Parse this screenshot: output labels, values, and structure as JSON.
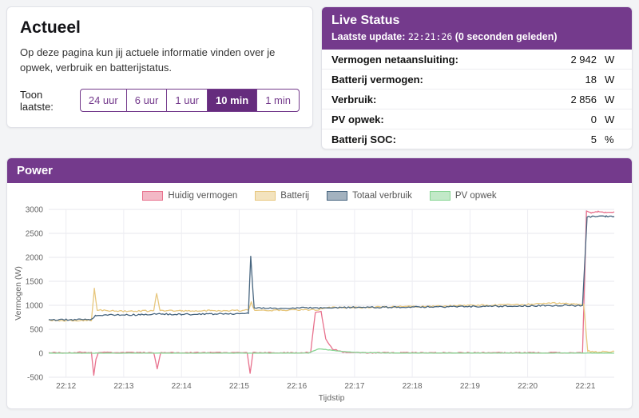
{
  "colors": {
    "accent": "#743a8c",
    "accent_dark": "#652c7d"
  },
  "actueel": {
    "title": "Actueel",
    "description": "Op deze pagina kun jij actuele informatie vinden over je opwek, verbruik en batterijstatus.",
    "range_label": "Toon laatste:",
    "ranges": [
      {
        "label": "24 uur",
        "active": false
      },
      {
        "label": "6 uur",
        "active": false
      },
      {
        "label": "1 uur",
        "active": false
      },
      {
        "label": "10 min",
        "active": true
      },
      {
        "label": "1 min",
        "active": false
      }
    ]
  },
  "live_status": {
    "title": "Live Status",
    "update_label": "Laatste update:",
    "update_time": "22:21:26",
    "update_ago": "(0 seconden geleden)",
    "rows": [
      {
        "label": "Vermogen netaansluiting:",
        "value": "2 942",
        "unit": "W"
      },
      {
        "label": "Batterij vermogen:",
        "value": "18",
        "unit": "W"
      },
      {
        "label": "Verbruik:",
        "value": "2 856",
        "unit": "W"
      },
      {
        "label": "PV opwek:",
        "value": "0",
        "unit": "W"
      },
      {
        "label": "Batterij SOC:",
        "value": "5",
        "unit": "%"
      }
    ]
  },
  "power": {
    "title": "Power"
  },
  "chart_data": {
    "type": "line",
    "title": "Power",
    "xlabel": "Tijdstip",
    "ylabel": "Vermogen (W)",
    "ylim": [
      -500,
      3000
    ],
    "y_ticks": [
      -500,
      0,
      500,
      1000,
      1500,
      2000,
      2500,
      3000
    ],
    "x_range": [
      11.7,
      21.5
    ],
    "x_ticks": [
      {
        "t": 12,
        "label": "22:12"
      },
      {
        "t": 13,
        "label": "22:13"
      },
      {
        "t": 14,
        "label": "22:14"
      },
      {
        "t": 15,
        "label": "22:15"
      },
      {
        "t": 16,
        "label": "22:16"
      },
      {
        "t": 17,
        "label": "22:17"
      },
      {
        "t": 18,
        "label": "22:18"
      },
      {
        "t": 19,
        "label": "22:19"
      },
      {
        "t": 20,
        "label": "22:20"
      },
      {
        "t": 21,
        "label": "22:21"
      }
    ],
    "grid": true,
    "legend_position": "top",
    "series": [
      {
        "name": "Huidig vermogen",
        "color": "#e8718d",
        "noise": 10,
        "points": [
          [
            11.7,
            15
          ],
          [
            12.0,
            10
          ],
          [
            12.3,
            20
          ],
          [
            12.44,
            10
          ],
          [
            12.48,
            -470
          ],
          [
            12.52,
            -120
          ],
          [
            12.56,
            20
          ],
          [
            12.9,
            10
          ],
          [
            13.3,
            15
          ],
          [
            13.52,
            10
          ],
          [
            13.58,
            -320
          ],
          [
            13.64,
            15
          ],
          [
            14.0,
            10
          ],
          [
            14.5,
            15
          ],
          [
            15.0,
            10
          ],
          [
            15.14,
            20
          ],
          [
            15.19,
            -420
          ],
          [
            15.24,
            15
          ],
          [
            15.6,
            10
          ],
          [
            16.0,
            10
          ],
          [
            16.24,
            20
          ],
          [
            16.32,
            850
          ],
          [
            16.42,
            870
          ],
          [
            16.5,
            300
          ],
          [
            16.62,
            90
          ],
          [
            16.8,
            25
          ],
          [
            17.2,
            10
          ],
          [
            17.8,
            12
          ],
          [
            18.4,
            10
          ],
          [
            19.0,
            12
          ],
          [
            19.6,
            10
          ],
          [
            20.2,
            12
          ],
          [
            20.7,
            10
          ],
          [
            20.95,
            15
          ],
          [
            21.02,
            2960
          ],
          [
            21.1,
            2930
          ],
          [
            21.22,
            2955
          ],
          [
            21.35,
            2935
          ],
          [
            21.5,
            2945
          ]
        ]
      },
      {
        "name": "Batterij",
        "color": "#e7c77e",
        "noise": 16,
        "points": [
          [
            11.7,
            685
          ],
          [
            12.1,
            680
          ],
          [
            12.44,
            685
          ],
          [
            12.49,
            1350
          ],
          [
            12.54,
            900
          ],
          [
            12.9,
            880
          ],
          [
            13.3,
            878
          ],
          [
            13.52,
            885
          ],
          [
            13.57,
            1255
          ],
          [
            13.63,
            890
          ],
          [
            14.0,
            885
          ],
          [
            14.5,
            888
          ],
          [
            15.0,
            892
          ],
          [
            15.16,
            895
          ],
          [
            15.21,
            1060
          ],
          [
            15.27,
            900
          ],
          [
            15.6,
            898
          ],
          [
            16.0,
            900
          ],
          [
            16.35,
            905
          ],
          [
            16.55,
            950
          ],
          [
            17.0,
            955
          ],
          [
            17.5,
            965
          ],
          [
            18.0,
            975
          ],
          [
            18.5,
            985
          ],
          [
            19.0,
            995
          ],
          [
            19.5,
            1005
          ],
          [
            20.0,
            1020
          ],
          [
            20.45,
            1045
          ],
          [
            20.8,
            1030
          ],
          [
            20.97,
            1015
          ],
          [
            21.04,
            45
          ],
          [
            21.2,
            30
          ],
          [
            21.5,
            35
          ]
        ]
      },
      {
        "name": "Totaal verbruik",
        "color": "#47657f",
        "noise": 16,
        "points": [
          [
            11.7,
            700
          ],
          [
            12.1,
            698
          ],
          [
            12.44,
            702
          ],
          [
            12.52,
            790
          ],
          [
            12.9,
            800
          ],
          [
            13.3,
            802
          ],
          [
            13.56,
            818
          ],
          [
            14.0,
            812
          ],
          [
            14.5,
            818
          ],
          [
            15.0,
            822
          ],
          [
            15.16,
            828
          ],
          [
            15.2,
            2030
          ],
          [
            15.26,
            940
          ],
          [
            15.6,
            938
          ],
          [
            16.0,
            944
          ],
          [
            16.4,
            948
          ],
          [
            16.8,
            952
          ],
          [
            17.3,
            958
          ],
          [
            17.8,
            962
          ],
          [
            18.3,
            968
          ],
          [
            18.8,
            972
          ],
          [
            19.3,
            978
          ],
          [
            19.8,
            985
          ],
          [
            20.3,
            995
          ],
          [
            20.7,
            1000
          ],
          [
            20.95,
            985
          ],
          [
            21.03,
            2850
          ],
          [
            21.2,
            2845
          ],
          [
            21.35,
            2855
          ],
          [
            21.5,
            2850
          ]
        ]
      },
      {
        "name": "PV opwek",
        "color": "#86d492",
        "noise": 3,
        "points": [
          [
            11.7,
            3
          ],
          [
            12.5,
            3
          ],
          [
            13.5,
            3
          ],
          [
            14.5,
            3
          ],
          [
            15.5,
            3
          ],
          [
            16.2,
            5
          ],
          [
            16.38,
            95
          ],
          [
            16.55,
            70
          ],
          [
            16.8,
            35
          ],
          [
            17.1,
            15
          ],
          [
            17.6,
            6
          ],
          [
            18.5,
            4
          ],
          [
            19.5,
            4
          ],
          [
            20.5,
            4
          ],
          [
            21.5,
            4
          ]
        ]
      }
    ]
  }
}
